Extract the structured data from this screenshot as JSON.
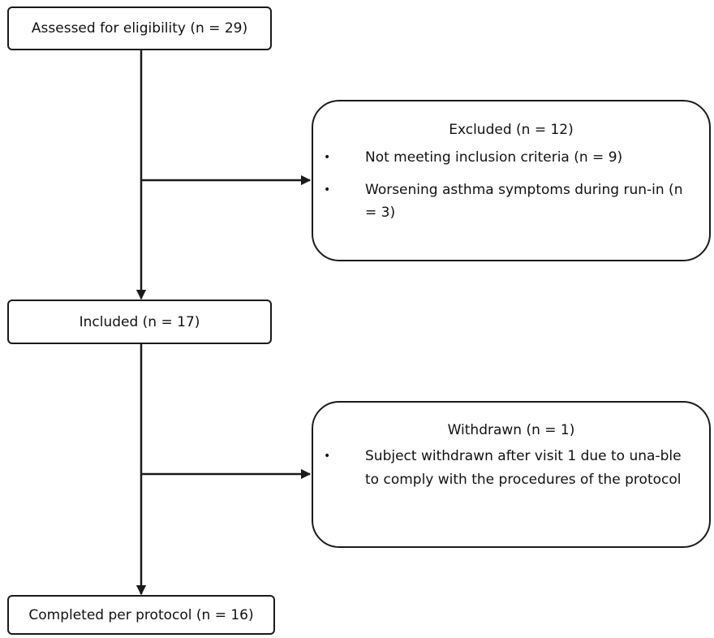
{
  "flow": {
    "assessed": "Assessed for eligibility (n = 29)",
    "included": "Included (n = 17)",
    "completed": "Completed per protocol (n = 16)",
    "excluded": {
      "heading": "Excluded (n = 12)",
      "items": [
        "Not meeting inclusion criteria (n = 9)",
        "Worsening asthma symptoms during run-in (n = 3)"
      ]
    },
    "withdrawn": {
      "heading": "Withdrawn (n = 1)",
      "items": [
        "Subject withdrawn after visit 1 due to una-ble to comply with the procedures of the protocol"
      ]
    },
    "bullet": "•"
  },
  "colors": {
    "stroke": "#1a1a1a",
    "background": "#ffffff",
    "text": "#111111"
  }
}
